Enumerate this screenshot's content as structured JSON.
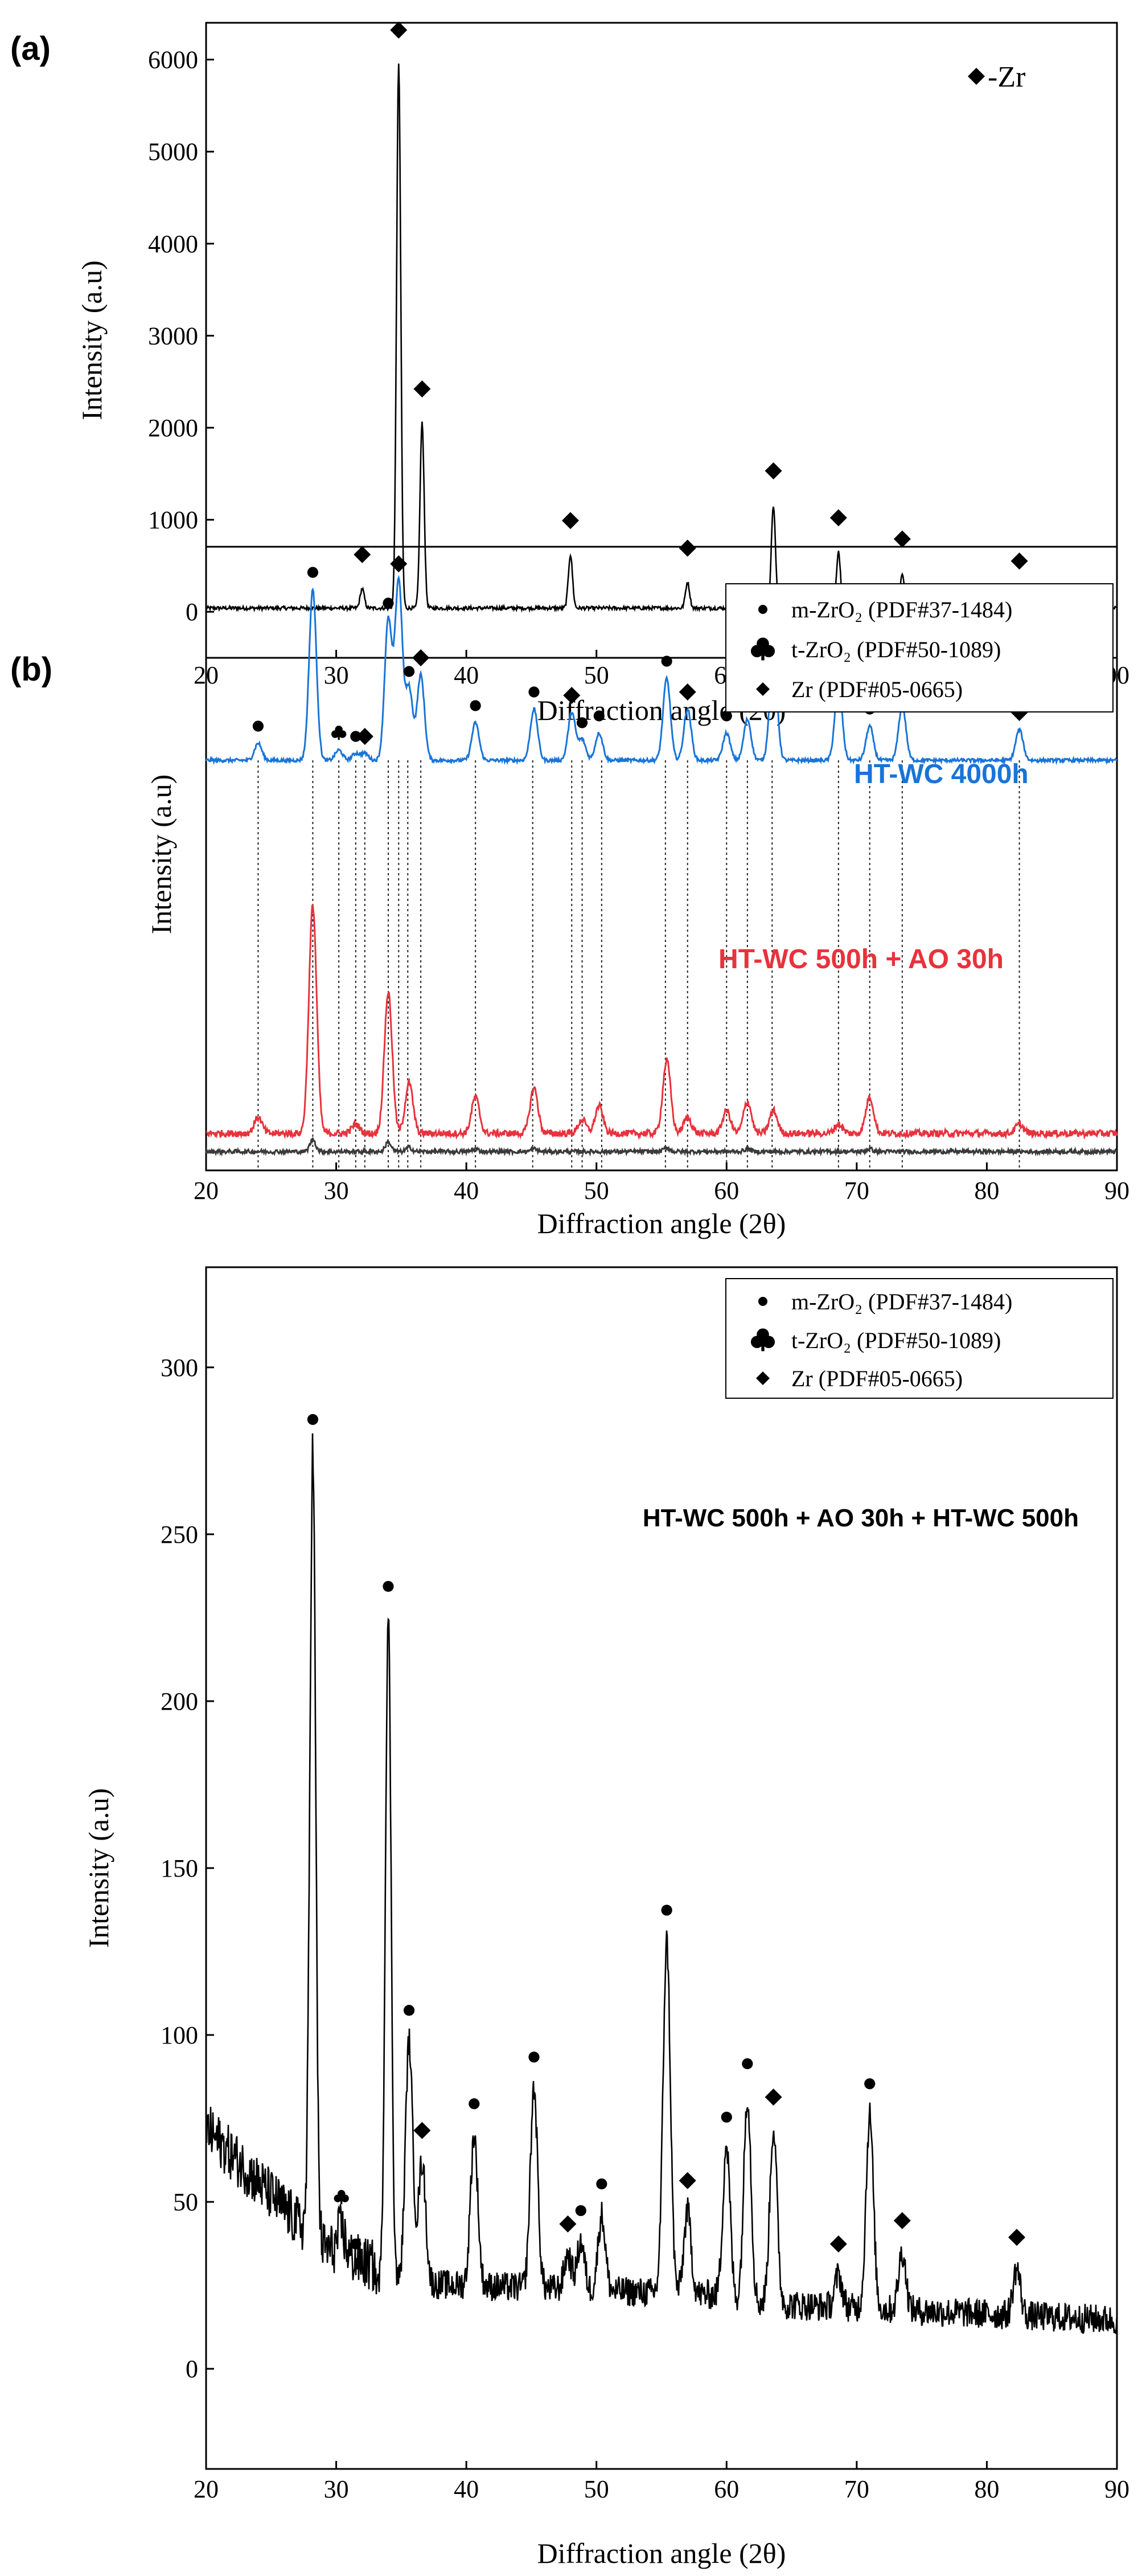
{
  "panel_labels": {
    "a": "(a)",
    "b": "(b)"
  },
  "colors": {
    "blue": "#1874d8",
    "red": "#e8323c",
    "dark": "#3a3a3a",
    "black": "#000000"
  },
  "chart_data": [
    {
      "type": "line",
      "panel": "(a)",
      "xlabel": "Diffraction angle (2θ)",
      "ylabel": "Intensity (a.u)",
      "xlim": [
        20,
        90
      ],
      "ylim": [
        -500,
        6400
      ],
      "xticks": [
        20,
        30,
        40,
        50,
        60,
        70,
        80,
        90
      ],
      "yticks": [
        0,
        1000,
        2000,
        3000,
        4000,
        5000,
        6000
      ],
      "legend": {
        "position": "top-right",
        "entries": [
          {
            "marker": "diamond",
            "label": "-Zr"
          }
        ]
      },
      "baseline": 40,
      "series": [
        {
          "color": "#000000",
          "peaks": [
            {
              "x": 32.0,
              "y": 250,
              "marker": "diamond"
            },
            {
              "x": 34.8,
              "y": 5950,
              "marker": "diamond"
            },
            {
              "x": 36.6,
              "y": 2050,
              "marker": "diamond"
            },
            {
              "x": 48.0,
              "y": 620,
              "marker": "diamond"
            },
            {
              "x": 57.0,
              "y": 320,
              "marker": "diamond"
            },
            {
              "x": 63.6,
              "y": 1160,
              "marker": "diamond"
            },
            {
              "x": 68.6,
              "y": 650,
              "marker": "diamond"
            },
            {
              "x": 73.5,
              "y": 420,
              "marker": "diamond"
            },
            {
              "x": 82.5,
              "y": 180,
              "marker": "diamond"
            }
          ]
        }
      ]
    },
    {
      "type": "line",
      "panel": "(b)",
      "xlabel": "Diffraction angle (2θ)",
      "ylabel": "Intensity (a.u)",
      "xlim": [
        20,
        90
      ],
      "xticks": [
        20,
        30,
        40,
        50,
        60,
        70,
        80,
        90
      ],
      "legend": {
        "position": "top-right",
        "entries": [
          {
            "marker": "circle",
            "label": "m-ZrO₂ (PDF#37-1484)"
          },
          {
            "marker": "club",
            "label": "t-ZrO₂ (PDF#50-1089)"
          },
          {
            "marker": "diamond",
            "label": "Zr (PDF#05-0665)"
          }
        ]
      },
      "reference_lines_x": [
        24.0,
        28.2,
        30.2,
        31.5,
        32.2,
        34.0,
        34.8,
        35.5,
        36.5,
        40.7,
        45.1,
        48.1,
        48.9,
        50.4,
        55.3,
        57.0,
        60.0,
        61.6,
        63.5,
        68.6,
        71.0,
        73.5,
        82.5
      ],
      "series": [
        {
          "name": "HT-WC 4000h",
          "color": "#1874d8",
          "peaks": [
            {
              "x": 24.0,
              "h": 0.1,
              "marker": "circle"
            },
            {
              "x": 28.2,
              "h": 1.0,
              "marker": "circle"
            },
            {
              "x": 30.2,
              "h": 0.06,
              "marker": "club"
            },
            {
              "x": 31.5,
              "h": 0.04,
              "marker": "circle"
            },
            {
              "x": 32.2,
              "h": 0.04,
              "marker": "diamond"
            },
            {
              "x": 34.0,
              "h": 0.82,
              "marker": "circle"
            },
            {
              "x": 34.8,
              "h": 1.05,
              "marker": "diamond"
            },
            {
              "x": 35.6,
              "h": 0.42,
              "marker": "circle"
            },
            {
              "x": 36.5,
              "h": 0.5,
              "marker": "diamond"
            },
            {
              "x": 40.7,
              "h": 0.22,
              "marker": "circle"
            },
            {
              "x": 45.2,
              "h": 0.3,
              "marker": "circle"
            },
            {
              "x": 48.1,
              "h": 0.28,
              "marker": "diamond"
            },
            {
              "x": 48.9,
              "h": 0.12,
              "marker": "circle"
            },
            {
              "x": 50.2,
              "h": 0.16,
              "marker": "circle"
            },
            {
              "x": 55.4,
              "h": 0.48,
              "marker": "circle"
            },
            {
              "x": 57.0,
              "h": 0.3,
              "marker": "diamond"
            },
            {
              "x": 60.0,
              "h": 0.16,
              "marker": "circle"
            },
            {
              "x": 61.6,
              "h": 0.24,
              "marker": "circle"
            },
            {
              "x": 63.6,
              "h": 0.65,
              "marker": "diamond"
            },
            {
              "x": 68.6,
              "h": 0.45,
              "marker": "diamond"
            },
            {
              "x": 71.0,
              "h": 0.2,
              "marker": "circle"
            },
            {
              "x": 73.5,
              "h": 0.32,
              "marker": "diamond"
            },
            {
              "x": 82.5,
              "h": 0.18,
              "marker": "diamond"
            }
          ]
        },
        {
          "name": "HT-WC 500h + AO 30h",
          "color": "#e8323c",
          "peaks": [
            {
              "x": 24.0,
              "h": 0.07
            },
            {
              "x": 28.2,
              "h": 1.0
            },
            {
              "x": 31.5,
              "h": 0.04
            },
            {
              "x": 34.0,
              "h": 0.62
            },
            {
              "x": 35.6,
              "h": 0.22
            },
            {
              "x": 40.7,
              "h": 0.16
            },
            {
              "x": 45.2,
              "h": 0.2
            },
            {
              "x": 48.9,
              "h": 0.06
            },
            {
              "x": 50.2,
              "h": 0.12
            },
            {
              "x": 55.4,
              "h": 0.32
            },
            {
              "x": 57.0,
              "h": 0.07
            },
            {
              "x": 60.0,
              "h": 0.1
            },
            {
              "x": 61.6,
              "h": 0.14
            },
            {
              "x": 63.6,
              "h": 0.1
            },
            {
              "x": 68.6,
              "h": 0.04
            },
            {
              "x": 71.0,
              "h": 0.16
            },
            {
              "x": 82.5,
              "h": 0.04
            }
          ]
        },
        {
          "color": "#3a3a3a",
          "peaks": [
            {
              "x": 28.2,
              "h": 0.09
            },
            {
              "x": 34.0,
              "h": 0.07
            },
            {
              "x": 35.6,
              "h": 0.03
            },
            {
              "x": 40.7,
              "h": 0.02
            },
            {
              "x": 45.2,
              "h": 0.02
            },
            {
              "x": 55.4,
              "h": 0.03
            },
            {
              "x": 61.6,
              "h": 0.02
            },
            {
              "x": 71.0,
              "h": 0.02
            }
          ]
        }
      ]
    },
    {
      "type": "line",
      "xlabel": "Diffraction angle (2θ)",
      "ylabel": "Intensity (a.u)",
      "xlim": [
        20,
        90
      ],
      "ylim": [
        -30,
        330
      ],
      "xticks": [
        20,
        30,
        40,
        50,
        60,
        70,
        80,
        90
      ],
      "yticks": [
        0,
        50,
        100,
        150,
        200,
        250,
        300
      ],
      "legend": {
        "position": "top-right",
        "entries": [
          {
            "marker": "circle",
            "label": "m-ZrO₂ (PDF#37-1484)"
          },
          {
            "marker": "club",
            "label": "t-ZrO₂ (PDF#50-1089)"
          },
          {
            "marker": "diamond",
            "label": "Zr (PDF#05-0665)"
          }
        ]
      },
      "annotation": "HT-WC 500h + AO 30h + HT-WC 500h",
      "series": [
        {
          "color": "#000000",
          "peaks": [
            {
              "x": 28.2,
              "y": 275,
              "marker": "circle"
            },
            {
              "x": 30.4,
              "y": 42,
              "marker": "club"
            },
            {
              "x": 31.5,
              "y": 28,
              "marker": "circle"
            },
            {
              "x": 34.0,
              "y": 225,
              "marker": "circle"
            },
            {
              "x": 35.6,
              "y": 98,
              "marker": "circle"
            },
            {
              "x": 36.6,
              "y": 62,
              "marker": "diamond"
            },
            {
              "x": 40.6,
              "y": 70,
              "marker": "circle"
            },
            {
              "x": 45.2,
              "y": 84,
              "marker": "circle"
            },
            {
              "x": 47.8,
              "y": 34,
              "marker": "diamond"
            },
            {
              "x": 48.8,
              "y": 38,
              "marker": "circle"
            },
            {
              "x": 50.4,
              "y": 46,
              "marker": "circle"
            },
            {
              "x": 55.4,
              "y": 128,
              "marker": "circle"
            },
            {
              "x": 57.0,
              "y": 47,
              "marker": "diamond"
            },
            {
              "x": 60.0,
              "y": 66,
              "marker": "circle"
            },
            {
              "x": 61.6,
              "y": 82,
              "marker": "circle"
            },
            {
              "x": 63.6,
              "y": 72,
              "marker": "diamond"
            },
            {
              "x": 68.6,
              "y": 28,
              "marker": "diamond"
            },
            {
              "x": 71.0,
              "y": 76,
              "marker": "circle"
            },
            {
              "x": 73.5,
              "y": 35,
              "marker": "diamond"
            },
            {
              "x": 82.3,
              "y": 30,
              "marker": "diamond"
            }
          ]
        }
      ]
    }
  ]
}
